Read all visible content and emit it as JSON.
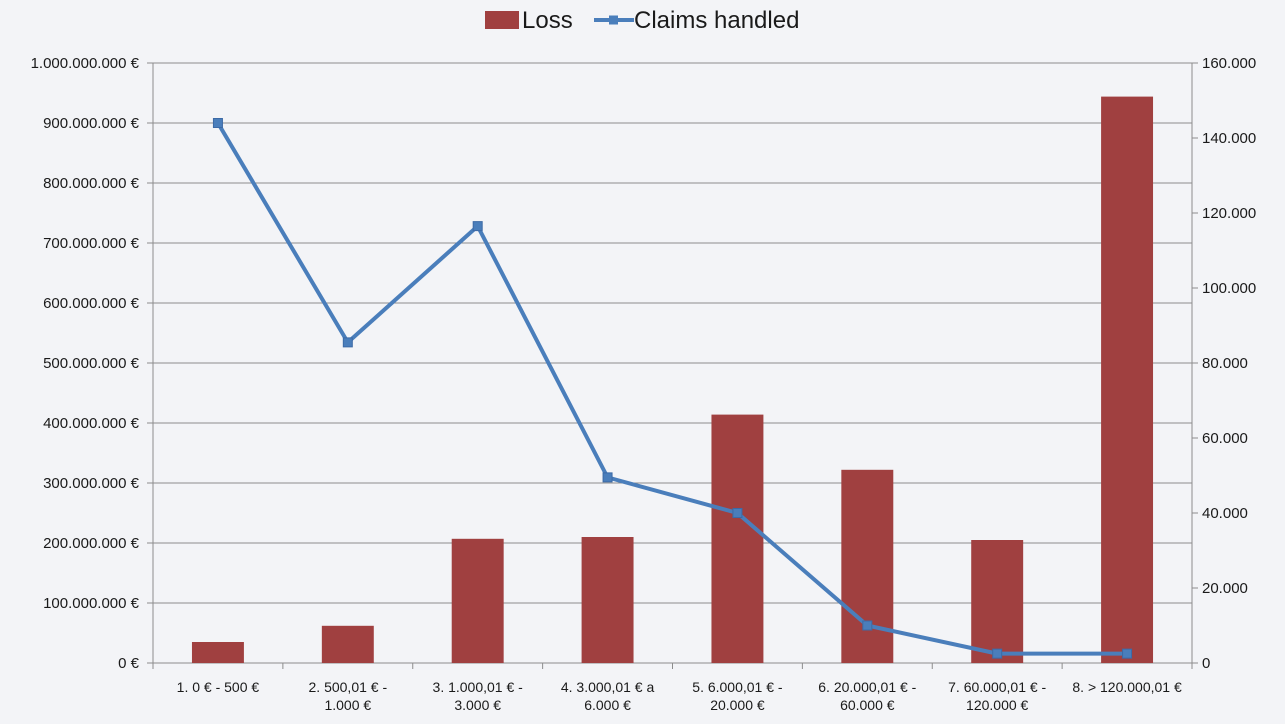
{
  "chart_data": {
    "type": "bar+line",
    "categories": [
      [
        "1. 0 € - 500 €"
      ],
      [
        "2. 500,01 € -",
        "1.000 €"
      ],
      [
        "3. 1.000,01 € -",
        "3.000 €"
      ],
      [
        "4. 3.000,01 € a",
        "6.000 €"
      ],
      [
        "5. 6.000,01 € -",
        "20.000 €"
      ],
      [
        "6. 20.000,01 € -",
        "60.000 €"
      ],
      [
        "7. 60.000,01 € -",
        "120.000 €"
      ],
      [
        "8. > 120.000,01 €"
      ]
    ],
    "series": [
      {
        "name": "Loss",
        "type": "bar",
        "axis": "left",
        "color": "#a04040",
        "values": [
          35000000,
          62000000,
          207000000,
          210000000,
          414000000,
          322000000,
          205000000,
          944000000
        ]
      },
      {
        "name": "Claims handled",
        "type": "line",
        "axis": "right",
        "color": "#4a7ebb",
        "values": [
          144000,
          85500,
          116500,
          49500,
          40000,
          10000,
          2500,
          2500
        ]
      }
    ],
    "y_left": {
      "range": [
        0,
        1000000000
      ],
      "ticks": [
        "0 €",
        "100.000.000 €",
        "200.000.000 €",
        "300.000.000 €",
        "400.000.000 €",
        "500.000.000 €",
        "600.000.000 €",
        "700.000.000 €",
        "800.000.000 €",
        "900.000.000 €",
        "1.000.000.000 €"
      ]
    },
    "y_right": {
      "range": [
        0,
        160000
      ],
      "ticks": [
        "0",
        "20.000",
        "40.000",
        "60.000",
        "80.000",
        "100.000",
        "120.000",
        "140.000",
        "160.000"
      ]
    },
    "grid": true,
    "legend": "top-center",
    "title": "",
    "xlabel": "",
    "ylabel": ""
  }
}
